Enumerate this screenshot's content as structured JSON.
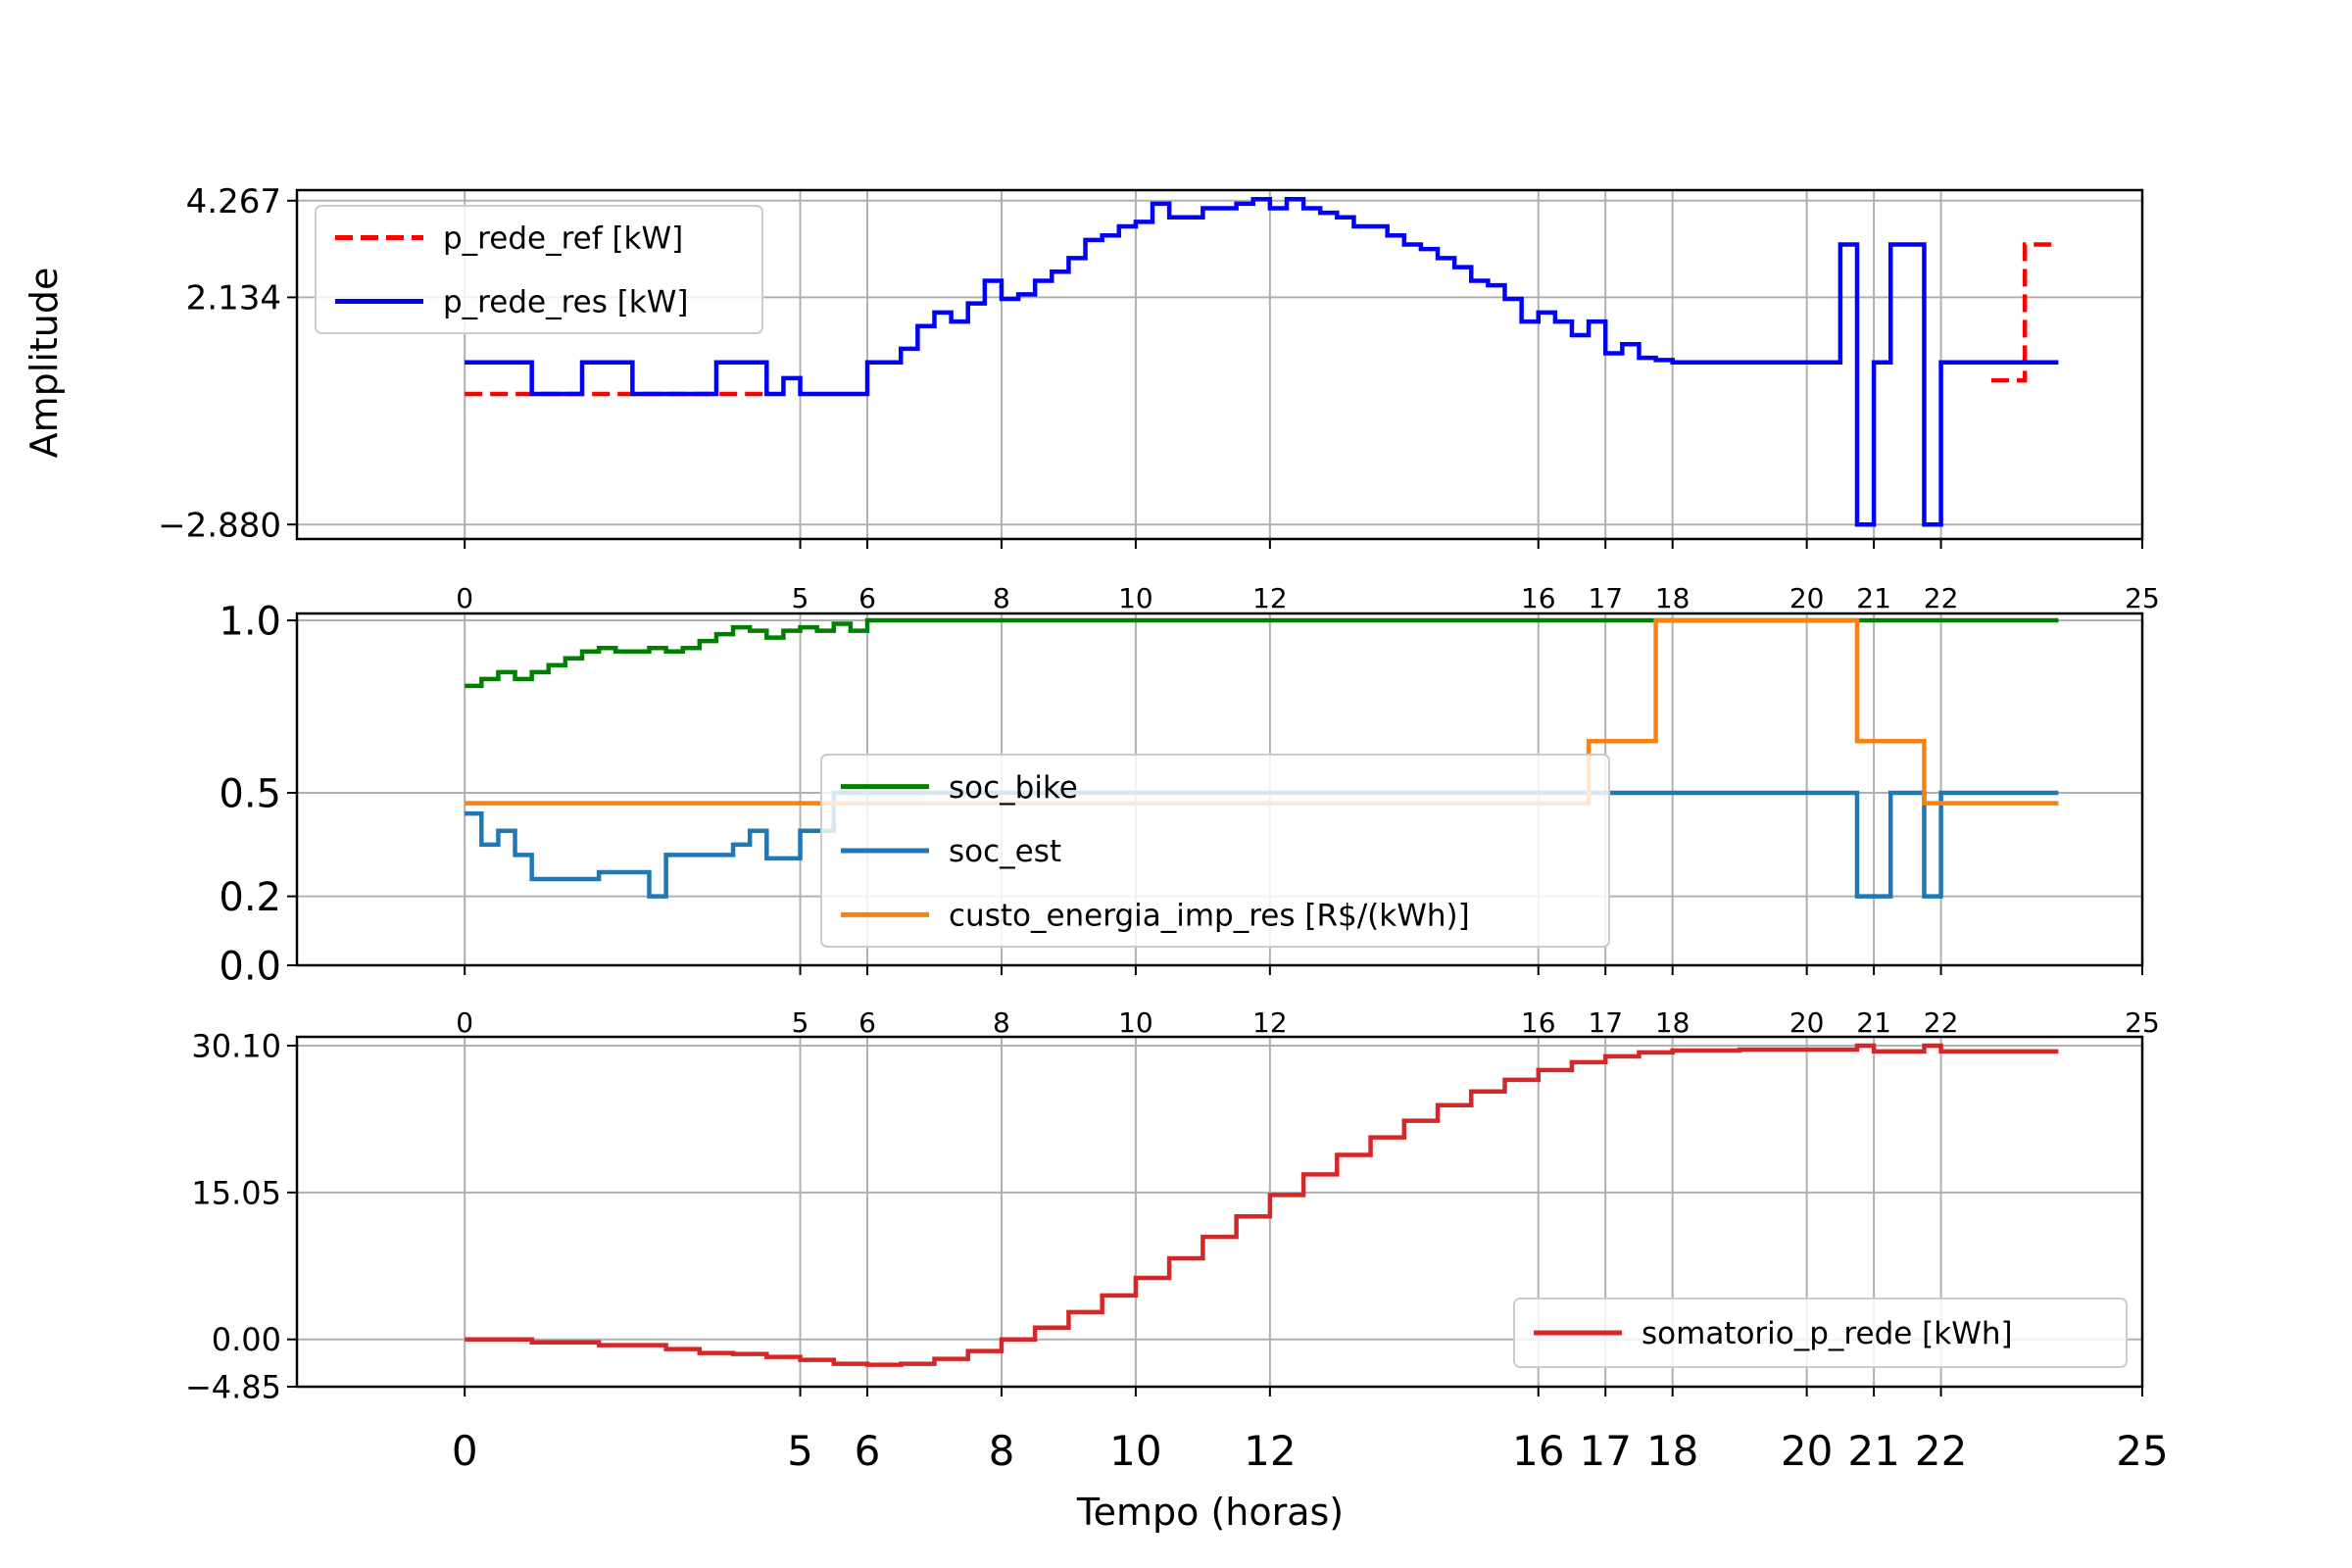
{
  "figure": {
    "ylabel": "Amplitude",
    "xlabel": "Tempo (horas)"
  },
  "chart_data": [
    {
      "type": "line",
      "drawstyle": "steps-post",
      "xlim": [
        -2.5,
        25
      ],
      "ylim": [
        -3.2,
        4.5
      ],
      "xticks": [
        0,
        5,
        6,
        8,
        10,
        12,
        16,
        17,
        18,
        20,
        21,
        22,
        25
      ],
      "yticks": [
        -2.88,
        2.134,
        4.267
      ],
      "ytick_labels": [
        "−2.880",
        "2.134",
        "4.267"
      ],
      "grid": true,
      "legend": "top-left",
      "series": [
        {
          "name": "p_rede_ref [kW]",
          "color": "#ff0000",
          "linestyle": "dashed",
          "x": [
            0,
            4.5,
            22.75,
            23.25,
            23.75
          ],
          "y": [
            0,
            null,
            0.3,
            3.3,
            3.3
          ]
        },
        {
          "name": "p_rede_res [kW]",
          "color": "#0000ff",
          "linestyle": "solid",
          "x": [
            0,
            1,
            1.75,
            2.5,
            3.75,
            4.5,
            4.75,
            5,
            6,
            6.5,
            6.75,
            7,
            7.25,
            7.5,
            7.75,
            8,
            8.25,
            8.5,
            8.75,
            9,
            9.25,
            9.5,
            9.75,
            10,
            10.25,
            10.5,
            10.75,
            11,
            11.25,
            11.5,
            11.75,
            12,
            12.25,
            12.5,
            12.75,
            13,
            13.25,
            13.5,
            13.75,
            14,
            14.25,
            14.5,
            14.75,
            15,
            15.25,
            15.5,
            15.75,
            16,
            16.25,
            16.5,
            16.75,
            17,
            17.25,
            17.5,
            17.75,
            18,
            18.25,
            18.5,
            20.5,
            20.75,
            21,
            21.25,
            21.75,
            22,
            23.75
          ],
          "y": [
            0.7,
            0,
            0.7,
            0,
            0.7,
            0,
            0.35,
            0,
            0.7,
            1.0,
            1.5,
            1.8,
            1.6,
            2.0,
            2.5,
            2.1,
            2.2,
            2.5,
            2.7,
            3.0,
            3.4,
            3.5,
            3.7,
            3.8,
            4.2,
            3.9,
            3.9,
            4.1,
            4.1,
            4.2,
            4.3,
            4.1,
            4.3,
            4.1,
            4.0,
            3.9,
            3.7,
            3.7,
            3.5,
            3.3,
            3.2,
            3.0,
            2.8,
            2.5,
            2.4,
            2.1,
            1.6,
            1.8,
            1.6,
            1.3,
            1.6,
            0.9,
            1.1,
            0.8,
            0.75,
            0.7,
            0.7,
            0.7,
            3.3,
            -2.88,
            0.7,
            3.3,
            -2.88,
            0.7,
            0.7
          ]
        }
      ]
    },
    {
      "type": "line",
      "drawstyle": "steps-post",
      "xlim": [
        -2.5,
        25
      ],
      "ylim": [
        0.0,
        1.02
      ],
      "xticks": [
        0,
        5,
        6,
        8,
        10,
        12,
        16,
        17,
        18,
        20,
        21,
        22,
        25
      ],
      "yticks": [
        0.0,
        0.2,
        0.5,
        1.0
      ],
      "ytick_labels": [
        "0.0",
        "0.2",
        "0.5",
        "1.0"
      ],
      "grid": true,
      "legend": "center",
      "series": [
        {
          "name": "soc_bike",
          "color": "#008000",
          "x": [
            0,
            0.25,
            0.5,
            0.75,
            1,
            1.25,
            1.5,
            1.75,
            2,
            2.25,
            2.5,
            2.75,
            3,
            3.25,
            3.5,
            3.75,
            4,
            4.25,
            4.5,
            4.75,
            5,
            5.25,
            5.5,
            5.75,
            6,
            23.75
          ],
          "y": [
            0.81,
            0.83,
            0.85,
            0.83,
            0.85,
            0.87,
            0.89,
            0.91,
            0.92,
            0.91,
            0.91,
            0.92,
            0.91,
            0.92,
            0.94,
            0.96,
            0.98,
            0.97,
            0.95,
            0.97,
            0.98,
            0.97,
            0.99,
            0.97,
            1.0,
            1.0
          ]
        },
        {
          "name": "soc_est",
          "color": "#1f77b4",
          "x": [
            0,
            0.25,
            0.5,
            0.75,
            1,
            1.5,
            2,
            2.5,
            2.75,
            3,
            3.5,
            4,
            4.25,
            4.5,
            5,
            5.5,
            6,
            20.75,
            21,
            21.25,
            21.75,
            22,
            23.75
          ],
          "y": [
            0.44,
            0.35,
            0.39,
            0.32,
            0.25,
            0.25,
            0.27,
            0.27,
            0.2,
            0.32,
            0.32,
            0.35,
            0.39,
            0.31,
            0.39,
            0.5,
            0.5,
            0.2,
            0.2,
            0.5,
            0.2,
            0.5,
            0.5
          ]
        },
        {
          "name": "custo_energia_imp_res [R$/(kWh)]",
          "color": "#ff7f0e",
          "x": [
            0,
            16.75,
            17.75,
            20.75,
            21.75,
            23.75
          ],
          "y": [
            0.47,
            0.65,
            1.0,
            0.65,
            0.47,
            0.47
          ]
        }
      ]
    },
    {
      "type": "line",
      "drawstyle": "steps-post",
      "xlim": [
        -2.5,
        25
      ],
      "ylim": [
        -4.85,
        31.0
      ],
      "xticks": [
        0,
        5,
        6,
        8,
        10,
        12,
        16,
        17,
        18,
        20,
        21,
        22,
        25
      ],
      "yticks": [
        -4.85,
        0.0,
        15.05,
        30.1
      ],
      "ytick_labels": [
        "−4.85",
        "0.00",
        "15.05",
        "30.10"
      ],
      "grid": true,
      "legend": "lower-right",
      "series": [
        {
          "name": "somatorio_p_rede [kWh]",
          "color": "#d62728",
          "x": [
            0,
            1,
            2,
            3,
            3.5,
            4,
            4.5,
            5,
            5.5,
            6,
            6.5,
            7,
            7.5,
            8,
            8.5,
            9,
            9.5,
            10,
            10.5,
            11,
            11.5,
            12,
            12.5,
            13,
            13.5,
            14,
            14.5,
            15,
            15.5,
            16,
            16.5,
            17,
            17.5,
            18,
            19,
            20,
            20.5,
            20.75,
            21,
            21.5,
            21.75,
            22,
            23,
            23.75
          ],
          "y": [
            0,
            -0.3,
            -0.6,
            -1.0,
            -1.4,
            -1.5,
            -1.8,
            -2.1,
            -2.5,
            -2.6,
            -2.5,
            -2.0,
            -1.2,
            0.0,
            1.2,
            2.8,
            4.5,
            6.3,
            8.3,
            10.5,
            12.6,
            14.8,
            16.9,
            18.9,
            20.7,
            22.4,
            24.0,
            25.4,
            26.6,
            27.6,
            28.4,
            29.0,
            29.4,
            29.6,
            29.7,
            29.7,
            29.7,
            30.1,
            29.5,
            29.5,
            30.1,
            29.5,
            29.5,
            29.5
          ]
        }
      ]
    }
  ]
}
